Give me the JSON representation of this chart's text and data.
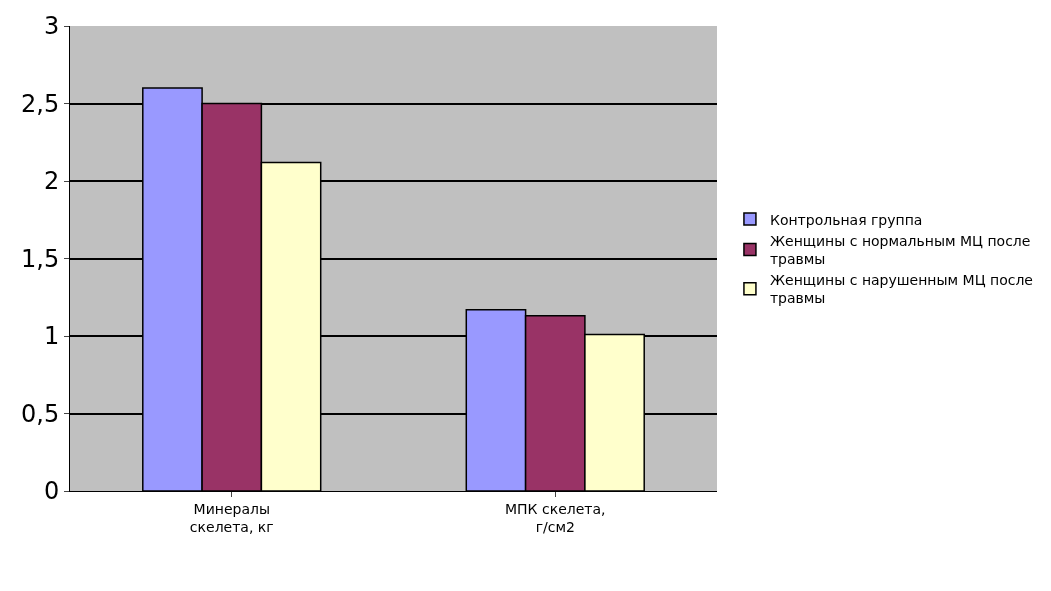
{
  "chart_data": {
    "type": "bar",
    "categories": [
      "Минералы скелета, кг",
      "МПК скелета, г/см2"
    ],
    "series": [
      {
        "name": "Контрольная группа",
        "color": "#9999ff",
        "values": [
          2.6,
          1.17
        ]
      },
      {
        "name": "Женщины с нормальным МЦ после травмы",
        "color": "#993366",
        "values": [
          2.5,
          1.13
        ]
      },
      {
        "name": "Женщины с нарушенным МЦ после травмы",
        "color": "#ffffcc",
        "values": [
          2.12,
          1.01
        ]
      }
    ],
    "ylim": [
      0,
      3
    ],
    "yticks": [
      0,
      {
        "value": 0.5,
        "label": "0,5"
      },
      1,
      {
        "value": 1.5,
        "label": "1,5"
      },
      2,
      {
        "value": 2.5,
        "label": "2,5"
      },
      3
    ],
    "grid": "y",
    "legend": "right"
  }
}
